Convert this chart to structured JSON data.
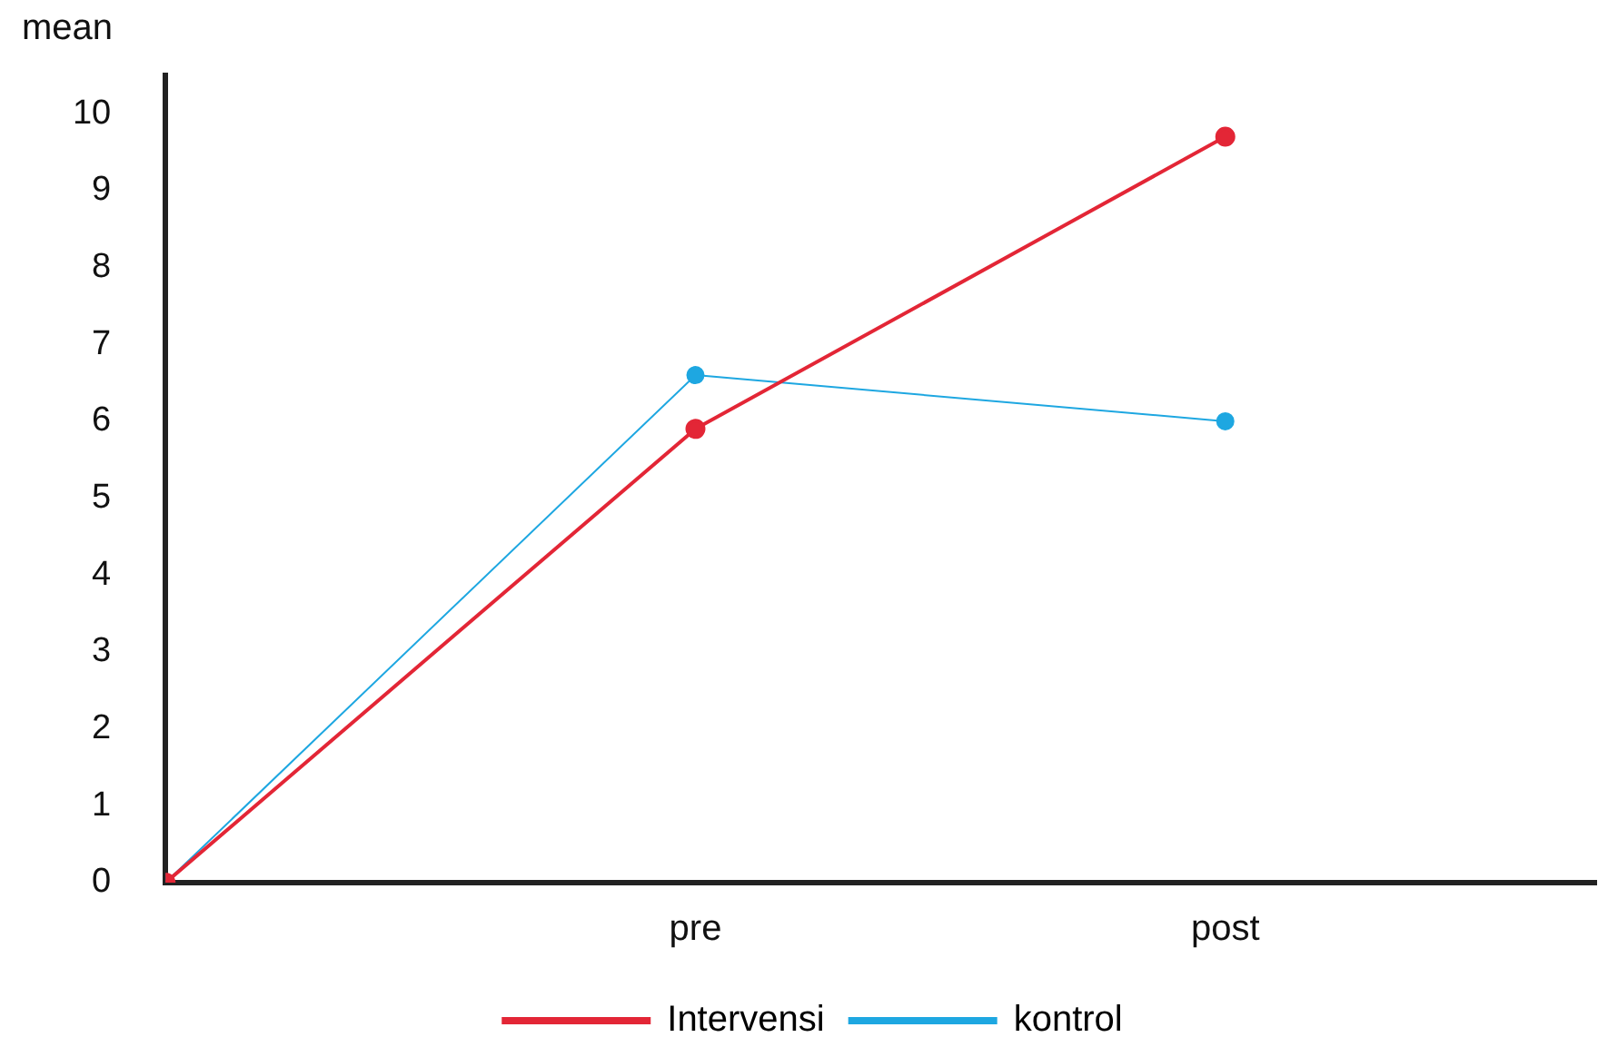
{
  "chart_data": {
    "type": "line",
    "ylabel": "mean",
    "categories": [
      null,
      "pre",
      "post"
    ],
    "ylim": [
      0,
      10.5
    ],
    "yticks": [
      0,
      1,
      2,
      3,
      4,
      5,
      6,
      7,
      8,
      9,
      10
    ],
    "series": [
      {
        "name": "Intervensi",
        "color": "#e32636",
        "values": [
          0,
          5.9,
          9.7
        ]
      },
      {
        "name": "kontrol",
        "color": "#1ea7e1",
        "values": [
          0,
          6.6,
          6.0
        ]
      }
    ],
    "marker": "circle",
    "grid": false,
    "legend": "bottom"
  }
}
